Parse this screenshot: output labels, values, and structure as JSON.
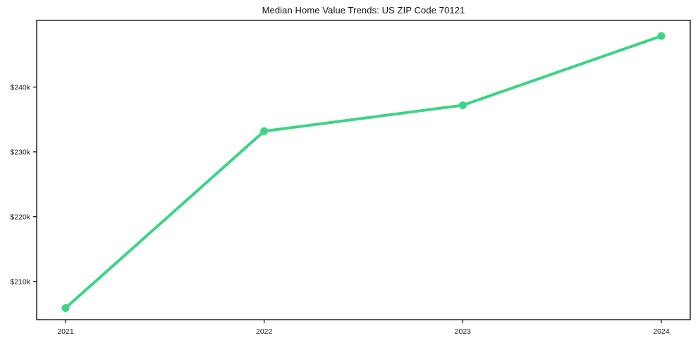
{
  "chart_data": {
    "type": "line",
    "title": "Median Home Value Trends: US ZIP Code 70121",
    "categories": [
      "2021",
      "2022",
      "2023",
      "2024"
    ],
    "series": [
      {
        "name": "Median Home Value",
        "values": [
          205900,
          233200,
          237200,
          247900
        ]
      }
    ],
    "xlabel": "",
    "ylabel": "",
    "ylim": [
      204100,
      250300
    ],
    "yticks": [
      {
        "value": 210000,
        "label": "$210k"
      },
      {
        "value": 220000,
        "label": "$220k"
      },
      {
        "value": 230000,
        "label": "$230k"
      },
      {
        "value": 240000,
        "label": "$240k"
      }
    ],
    "grid": false,
    "legend_position": "none",
    "line_color": "#3cd483",
    "marker": "circle",
    "line_width": 4,
    "marker_radius": 5.5,
    "axis_color": "#000000",
    "text_color": "#1c1c1c",
    "background_color": "#ffffff"
  }
}
